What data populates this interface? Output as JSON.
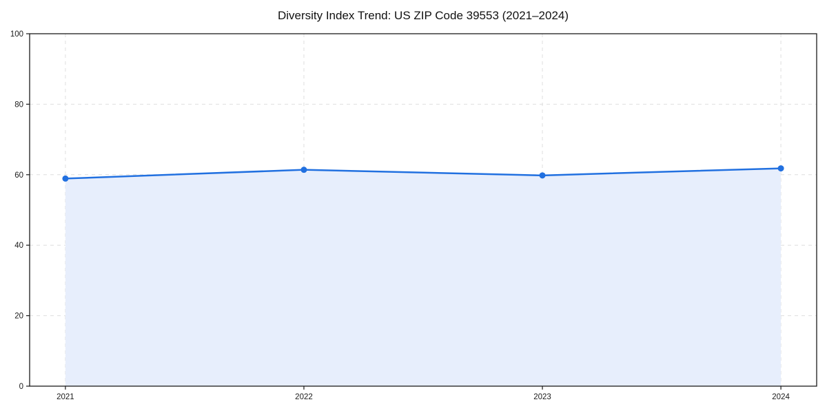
{
  "page": {
    "background": "#ffffff"
  },
  "chart_data": {
    "type": "area",
    "title": "Diversity Index Trend: US ZIP Code 39553 (2021–2024)",
    "x": [
      2021,
      2022,
      2023,
      2024
    ],
    "xtick_labels": [
      "2021",
      "2022",
      "2023",
      "2024"
    ],
    "series": [
      {
        "name": "Diversity Index",
        "values": [
          58.9,
          61.4,
          59.8,
          61.8
        ]
      }
    ],
    "xlabel": "",
    "ylabel": "",
    "xlim": [
      2020.85,
      2024.15
    ],
    "ylim": [
      0,
      100
    ],
    "yticks": [
      0,
      20,
      40,
      60,
      80,
      100
    ],
    "grid": true,
    "grid_style": "dashed",
    "legend": "none",
    "marker": "circle",
    "line_width": 2.5,
    "marker_radius": 4.5,
    "colors": {
      "line": "#2170e0",
      "marker": "#2170e0",
      "fill": "#e7eefc",
      "grid": "#dedede",
      "spine": "#1a1a1a",
      "text": "#1a1a1a",
      "background": "#ffffff"
    }
  }
}
